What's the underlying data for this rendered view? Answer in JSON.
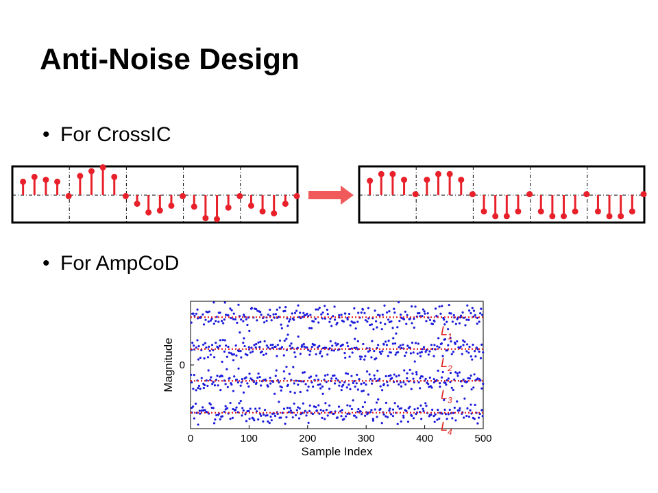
{
  "slide": {
    "title": "Anti-Noise Design",
    "bullets": [
      {
        "marker": "•",
        "text": "For CrossIC"
      },
      {
        "marker": "•",
        "text": "For AmpCoD"
      }
    ]
  },
  "colors": {
    "stem": "#e8202a",
    "arrow": "#f05a5a",
    "scatter_point": "#1a1adb",
    "level_line": "#e02020",
    "level_label": "#e02020"
  },
  "crossic": {
    "before": [
      0.7,
      0.95,
      0.8,
      0.7,
      -0.05,
      1.0,
      1.25,
      1.45,
      0.95,
      -0.05,
      -0.45,
      -0.9,
      -0.8,
      -0.55,
      -0.05,
      -0.6,
      -1.2,
      -1.25,
      -0.65,
      -0.05,
      -0.55,
      -0.85,
      -0.95,
      -0.45,
      -0.05
    ],
    "after": [
      0.75,
      1.1,
      1.1,
      0.8,
      0.05,
      0.8,
      1.1,
      1.1,
      0.8,
      0.05,
      -0.85,
      -1.1,
      -1.1,
      -0.85,
      0.05,
      -0.85,
      -1.1,
      -1.1,
      -0.85,
      0.05,
      -0.85,
      -1.1,
      -1.1,
      -0.85,
      0.05
    ]
  },
  "chart_data": {
    "type": "scatter",
    "title": "",
    "xlabel": "Sample Index",
    "ylabel": "Magnitude",
    "xlim": [
      0,
      500
    ],
    "xticks": [
      "0",
      "100",
      "200",
      "300",
      "400",
      "500"
    ],
    "ytick_label": "0",
    "levels": [
      {
        "name": "L",
        "sub": "1",
        "y": 3
      },
      {
        "name": "L",
        "sub": "2",
        "y": 1
      },
      {
        "name": "L",
        "sub": "3",
        "y": -1
      },
      {
        "name": "L",
        "sub": "4",
        "y": -3
      }
    ],
    "samples": 500,
    "noise_spread": 0.35
  }
}
